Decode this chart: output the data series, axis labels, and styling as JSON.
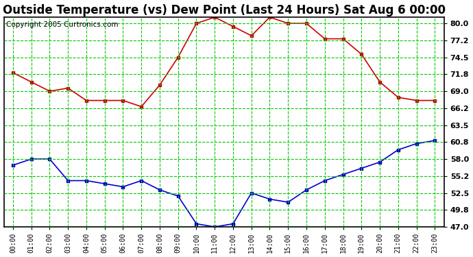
{
  "title": "Outside Temperature (vs) Dew Point (Last 24 Hours) Sat Aug 6 00:00",
  "copyright": "Copyright 2005 Curtronics.com",
  "x_labels": [
    "00:00",
    "01:00",
    "02:00",
    "03:00",
    "04:00",
    "05:00",
    "06:00",
    "07:00",
    "08:00",
    "09:00",
    "10:00",
    "11:00",
    "12:00",
    "13:00",
    "14:00",
    "15:00",
    "16:00",
    "17:00",
    "18:00",
    "19:00",
    "20:00",
    "21:00",
    "22:00",
    "23:00"
  ],
  "temp_data": [
    72.0,
    70.5,
    69.0,
    69.5,
    67.5,
    67.5,
    67.5,
    66.5,
    70.0,
    74.5,
    80.0,
    81.0,
    79.5,
    78.0,
    81.0,
    80.0,
    80.0,
    77.5,
    77.5,
    75.0,
    70.5,
    68.0,
    67.5,
    67.5
  ],
  "dew_data": [
    57.0,
    58.0,
    58.0,
    54.5,
    54.5,
    54.0,
    53.5,
    54.5,
    53.0,
    52.0,
    47.5,
    47.0,
    47.5,
    52.5,
    51.5,
    51.0,
    53.0,
    54.5,
    55.5,
    56.5,
    57.5,
    59.5,
    60.5,
    61.0
  ],
  "temp_color": "#cc0000",
  "dew_color": "#0000cc",
  "background_color": "#ffffff",
  "plot_bg_color": "#ffffff",
  "grid_color": "#00cc00",
  "ylim": [
    47.0,
    81.0
  ],
  "yticks": [
    47.0,
    49.8,
    52.5,
    55.2,
    58.0,
    60.8,
    63.5,
    66.2,
    69.0,
    71.8,
    74.5,
    77.2,
    80.0
  ],
  "title_fontsize": 12,
  "copyright_fontsize": 7.5
}
